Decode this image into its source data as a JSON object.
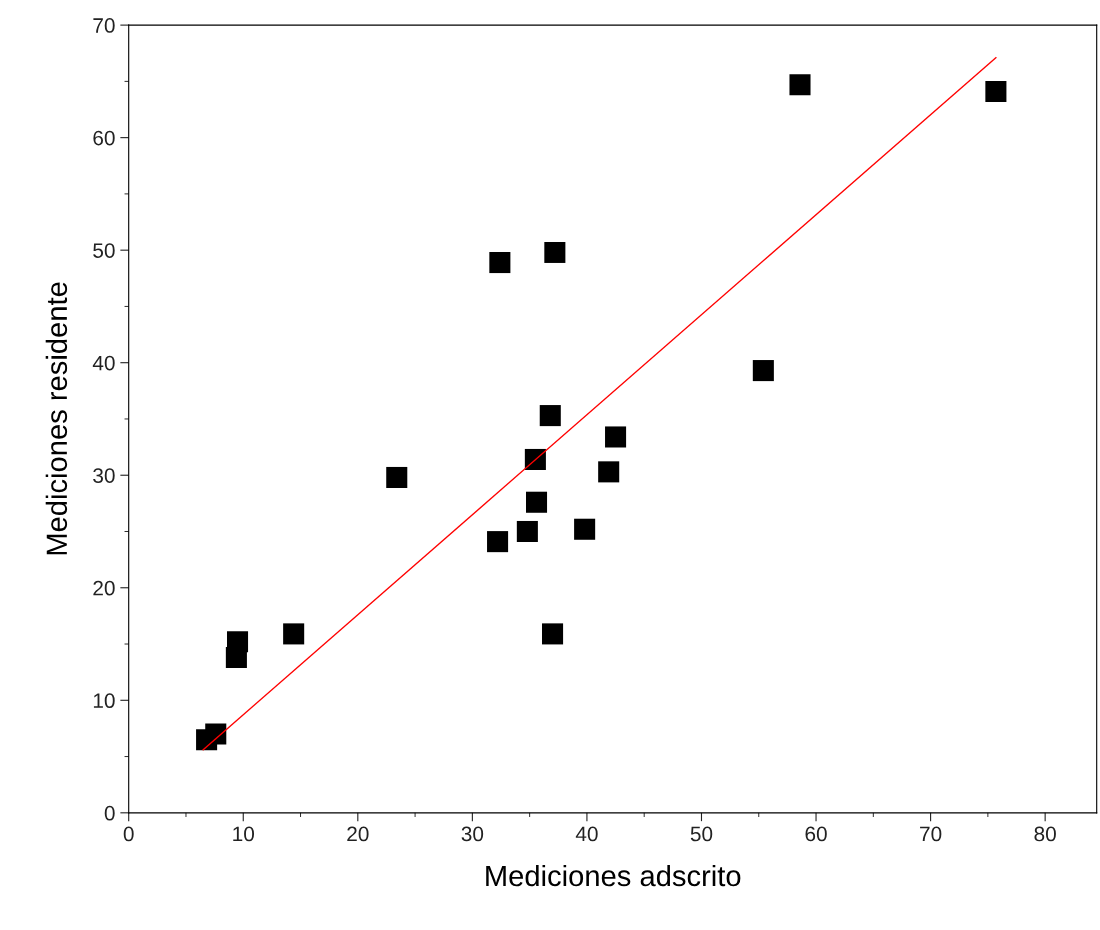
{
  "chart_data": {
    "type": "scatter",
    "xlabel": "Mediciones adscrito",
    "ylabel": "Mediciones residente",
    "xlim": [
      0,
      84.5
    ],
    "ylim": [
      0,
      70
    ],
    "xticks": [
      0,
      {
        "value": 5,
        "label": null
      },
      10,
      {
        "value": 15,
        "label": null
      },
      20,
      {
        "value": 25,
        "label": null
      },
      30,
      {
        "value": 35,
        "label": null
      },
      40,
      {
        "value": 45,
        "label": null
      },
      50,
      {
        "value": 55,
        "label": null
      },
      60,
      {
        "value": 65,
        "label": null
      },
      70,
      {
        "value": 75,
        "label": null
      },
      80
    ],
    "yticks": [
      0,
      {
        "value": 5,
        "label": null
      },
      10,
      {
        "value": 15,
        "label": null
      },
      20,
      {
        "value": 25,
        "label": null
      },
      30,
      {
        "value": 35,
        "label": null
      },
      40,
      {
        "value": 45,
        "label": null
      },
      50,
      {
        "value": 55,
        "label": null
      },
      60,
      {
        "value": 65,
        "label": null
      },
      70
    ],
    "grid": false,
    "legend": false,
    "series": [
      {
        "color": "#000000",
        "marker": "square",
        "x": [
          6.8,
          7.6,
          9.4,
          9.5,
          14.4,
          23.4,
          32.2,
          32.4,
          34.8,
          35.6,
          35.5,
          36.8,
          37.0,
          37.2,
          39.8,
          41.9,
          42.5,
          55.4,
          58.6,
          75.7
        ],
        "values": [
          6.5,
          7.0,
          13.8,
          15.2,
          15.9,
          29.8,
          24.1,
          48.9,
          25.0,
          27.6,
          31.4,
          35.3,
          15.9,
          49.8,
          25.2,
          30.3,
          33.4,
          39.3,
          64.7,
          64.1
        ]
      },
      {
        "type": "line",
        "color": "#ff0000",
        "marker": "none",
        "line_style": "solid",
        "x": [
          6.5,
          75.7
        ],
        "values": [
          5.6,
          67.1
        ]
      }
    ]
  }
}
